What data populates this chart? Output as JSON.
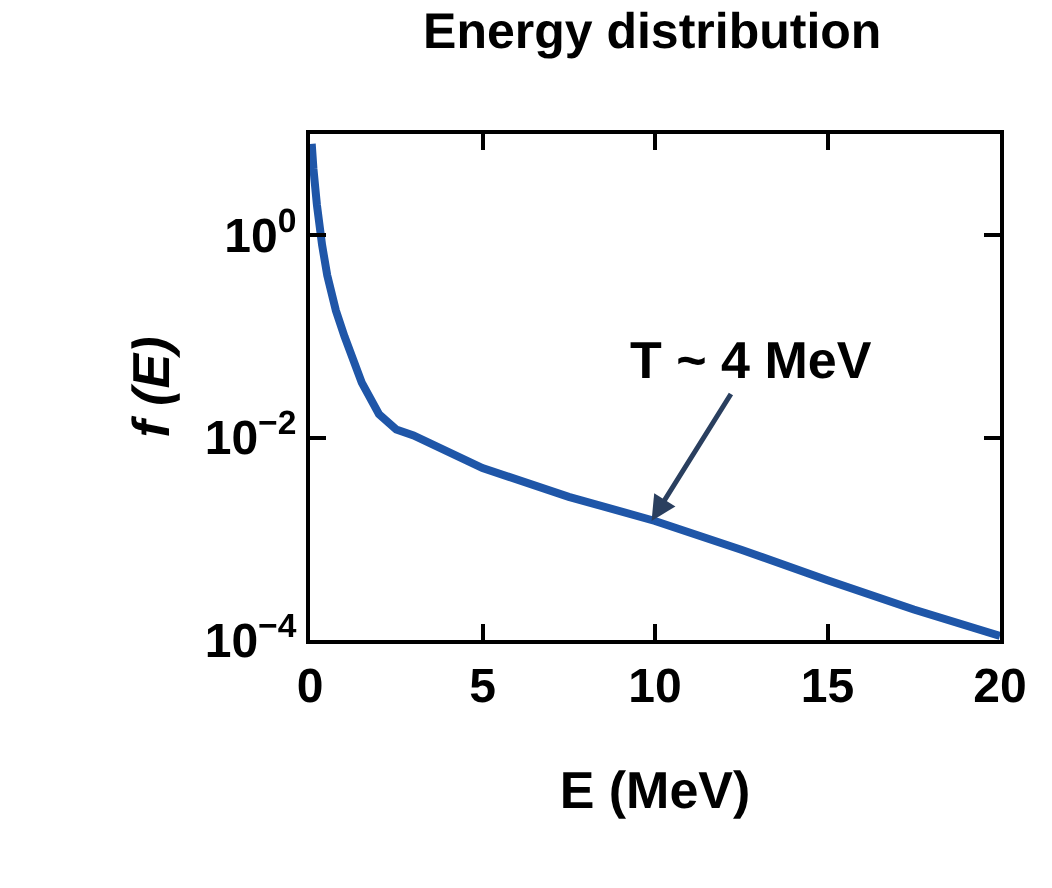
{
  "chart_data": {
    "type": "line",
    "title": "Energy distribution",
    "xlabel": "E (MeV)",
    "ylabel": "f (E)",
    "x": [
      0.05,
      0.1,
      0.2,
      0.35,
      0.5,
      0.75,
      1,
      1.5,
      2,
      2.5,
      3,
      5,
      7.5,
      10,
      12.5,
      15,
      17.5,
      20
    ],
    "series": [
      {
        "color": "#1f56a8",
        "values": [
          8,
          4.5,
          2,
          0.8,
          0.4,
          0.18,
          0.1,
          0.035,
          0.017,
          0.012,
          0.0105,
          0.005,
          0.0026,
          0.0015,
          0.00078,
          0.00039,
          0.0002,
          0.00011
        ]
      }
    ],
    "log": "y",
    "xlim": [
      0,
      20
    ],
    "xticks": [
      0,
      5,
      10,
      15,
      20
    ],
    "ylim": [
      0.0001,
      10
    ],
    "yticks": [
      {
        "value": 1,
        "label": "10$^{0}$"
      },
      {
        "value": 0.01,
        "label": "10$^{−2}$"
      },
      {
        "value": 0.0001,
        "label": "10$^{−4}$"
      }
    ],
    "grid": false,
    "legend": false,
    "marker": "none",
    "line_style": "solid",
    "annotations": [
      {
        "text": "T ~ 4 MeV",
        "x": 9.9,
        "y": 0.0015
      }
    ]
  }
}
